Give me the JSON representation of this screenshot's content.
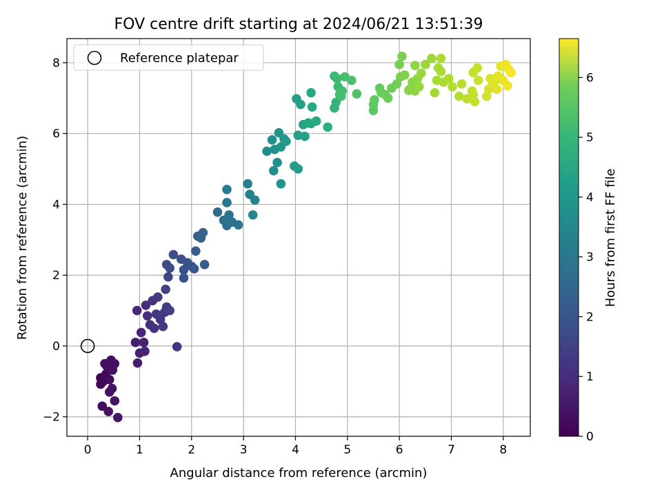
{
  "chart_data": {
    "type": "scatter",
    "title": "FOV centre drift starting at 2024/06/21 13:51:39",
    "xlabel": "Angular distance from reference (arcmin)",
    "ylabel": "Rotation from reference (arcmin)",
    "xlim": [
      -0.4,
      8.52
    ],
    "ylim": [
      -2.55,
      8.68
    ],
    "xticks": [
      0,
      1,
      2,
      3,
      4,
      5,
      6,
      7,
      8
    ],
    "yticks": [
      -2,
      0,
      2,
      4,
      6,
      8
    ],
    "xtick_labels": [
      "0",
      "1",
      "2",
      "3",
      "4",
      "5",
      "6",
      "7",
      "8"
    ],
    "ytick_labels": [
      "−2",
      "0",
      "2",
      "4",
      "6",
      "8"
    ],
    "grid": true,
    "legend": {
      "placement": "top-left",
      "label": "Reference platepar"
    },
    "reference_point": {
      "x": 0,
      "y": 0
    },
    "colormap": "viridis",
    "colorbar": {
      "label": "Hours from first FF file",
      "range": [
        0,
        6.65
      ],
      "ticks": [
        0,
        1,
        2,
        3,
        4,
        5,
        6
      ],
      "tick_labels": [
        "0",
        "1",
        "2",
        "3",
        "4",
        "5",
        "6"
      ]
    },
    "points": [
      {
        "x": 0.25,
        "y": -0.9,
        "c": 0.05
      },
      {
        "x": 0.3,
        "y": -1.0,
        "c": 0.1
      },
      {
        "x": 0.35,
        "y": -0.8,
        "c": 0.15
      },
      {
        "x": 0.42,
        "y": -0.95,
        "c": 0.2
      },
      {
        "x": 0.33,
        "y": -0.5,
        "c": 0.22
      },
      {
        "x": 0.45,
        "y": -0.4,
        "c": 0.25
      },
      {
        "x": 0.52,
        "y": -0.5,
        "c": 0.28
      },
      {
        "x": 0.48,
        "y": -0.68,
        "c": 0.3
      },
      {
        "x": 0.25,
        "y": -1.08,
        "c": 0.12
      },
      {
        "x": 0.28,
        "y": -1.7,
        "c": 0.18
      },
      {
        "x": 0.42,
        "y": -1.3,
        "c": 0.32
      },
      {
        "x": 0.52,
        "y": -1.55,
        "c": 0.35
      },
      {
        "x": 0.4,
        "y": -1.85,
        "c": 0.3
      },
      {
        "x": 0.58,
        "y": -2.02,
        "c": 0.38
      },
      {
        "x": 0.47,
        "y": -1.2,
        "c": 0.33
      },
      {
        "x": 0.38,
        "y": -0.6,
        "c": 0.27
      },
      {
        "x": 0.95,
        "y": 1.0,
        "c": 0.8
      },
      {
        "x": 0.92,
        "y": 0.1,
        "c": 0.6
      },
      {
        "x": 0.96,
        "y": -0.48,
        "c": 0.55
      },
      {
        "x": 1.0,
        "y": -0.2,
        "c": 0.62
      },
      {
        "x": 1.03,
        "y": 0.38,
        "c": 0.7
      },
      {
        "x": 1.08,
        "y": 0.1,
        "c": 0.65
      },
      {
        "x": 1.1,
        "y": -0.15,
        "c": 0.68
      },
      {
        "x": 1.12,
        "y": 1.15,
        "c": 0.85
      },
      {
        "x": 1.15,
        "y": 0.85,
        "c": 0.9
      },
      {
        "x": 1.2,
        "y": 0.6,
        "c": 0.95
      },
      {
        "x": 1.25,
        "y": 1.28,
        "c": 1.0
      },
      {
        "x": 1.28,
        "y": 0.5,
        "c": 0.92
      },
      {
        "x": 1.32,
        "y": 0.9,
        "c": 1.05
      },
      {
        "x": 1.35,
        "y": 1.38,
        "c": 1.1
      },
      {
        "x": 1.4,
        "y": 0.75,
        "c": 1.08
      },
      {
        "x": 1.45,
        "y": 0.55,
        "c": 1.12
      },
      {
        "x": 1.48,
        "y": 0.95,
        "c": 1.15
      },
      {
        "x": 1.52,
        "y": 1.1,
        "c": 1.2
      },
      {
        "x": 1.58,
        "y": 1.0,
        "c": 1.25
      },
      {
        "x": 1.5,
        "y": 1.6,
        "c": 1.3
      },
      {
        "x": 1.55,
        "y": 1.95,
        "c": 1.4
      },
      {
        "x": 1.52,
        "y": 2.3,
        "c": 1.45
      },
      {
        "x": 1.58,
        "y": 2.2,
        "c": 1.5
      },
      {
        "x": 1.72,
        "y": -0.02,
        "c": 1.0
      },
      {
        "x": 1.65,
        "y": 2.58,
        "c": 1.55
      },
      {
        "x": 1.8,
        "y": 2.45,
        "c": 1.6
      },
      {
        "x": 1.85,
        "y": 2.15,
        "c": 1.65
      },
      {
        "x": 1.92,
        "y": 2.35,
        "c": 1.7
      },
      {
        "x": 2.0,
        "y": 2.25,
        "c": 1.75
      },
      {
        "x": 1.85,
        "y": 1.92,
        "c": 1.7
      },
      {
        "x": 2.05,
        "y": 2.18,
        "c": 1.8
      },
      {
        "x": 2.08,
        "y": 2.68,
        "c": 1.9
      },
      {
        "x": 2.12,
        "y": 3.1,
        "c": 2.0
      },
      {
        "x": 2.18,
        "y": 3.05,
        "c": 2.05
      },
      {
        "x": 2.22,
        "y": 3.2,
        "c": 2.1
      },
      {
        "x": 2.25,
        "y": 2.3,
        "c": 1.95
      },
      {
        "x": 2.5,
        "y": 3.78,
        "c": 2.3
      },
      {
        "x": 2.62,
        "y": 3.55,
        "c": 2.4
      },
      {
        "x": 2.68,
        "y": 3.4,
        "c": 2.45
      },
      {
        "x": 2.72,
        "y": 3.7,
        "c": 2.5
      },
      {
        "x": 2.78,
        "y": 3.5,
        "c": 2.55
      },
      {
        "x": 2.9,
        "y": 3.42,
        "c": 2.6
      },
      {
        "x": 2.68,
        "y": 4.05,
        "c": 2.65
      },
      {
        "x": 2.68,
        "y": 4.42,
        "c": 2.7
      },
      {
        "x": 3.08,
        "y": 4.58,
        "c": 2.85
      },
      {
        "x": 3.12,
        "y": 4.28,
        "c": 2.9
      },
      {
        "x": 3.22,
        "y": 4.12,
        "c": 2.95
      },
      {
        "x": 3.18,
        "y": 3.7,
        "c": 2.92
      },
      {
        "x": 3.45,
        "y": 5.5,
        "c": 3.2
      },
      {
        "x": 3.55,
        "y": 5.82,
        "c": 3.3
      },
      {
        "x": 3.6,
        "y": 5.55,
        "c": 3.35
      },
      {
        "x": 3.58,
        "y": 4.95,
        "c": 3.25
      },
      {
        "x": 3.65,
        "y": 5.18,
        "c": 3.3
      },
      {
        "x": 3.68,
        "y": 6.02,
        "c": 3.4
      },
      {
        "x": 3.72,
        "y": 5.62,
        "c": 3.45
      },
      {
        "x": 3.78,
        "y": 5.85,
        "c": 3.5
      },
      {
        "x": 3.82,
        "y": 5.78,
        "c": 3.55
      },
      {
        "x": 3.72,
        "y": 4.58,
        "c": 3.4
      },
      {
        "x": 3.98,
        "y": 5.08,
        "c": 3.6
      },
      {
        "x": 4.05,
        "y": 5.0,
        "c": 3.65
      },
      {
        "x": 4.02,
        "y": 6.98,
        "c": 3.75
      },
      {
        "x": 4.05,
        "y": 5.95,
        "c": 3.7
      },
      {
        "x": 4.1,
        "y": 6.82,
        "c": 3.8
      },
      {
        "x": 4.15,
        "y": 6.25,
        "c": 3.85
      },
      {
        "x": 4.18,
        "y": 5.92,
        "c": 3.8
      },
      {
        "x": 4.25,
        "y": 6.3,
        "c": 3.9
      },
      {
        "x": 4.3,
        "y": 6.28,
        "c": 3.95
      },
      {
        "x": 4.3,
        "y": 7.15,
        "c": 4.0
      },
      {
        "x": 4.32,
        "y": 6.75,
        "c": 3.98
      },
      {
        "x": 4.4,
        "y": 6.35,
        "c": 4.05
      },
      {
        "x": 4.62,
        "y": 6.18,
        "c": 4.2
      },
      {
        "x": 4.75,
        "y": 6.72,
        "c": 4.3
      },
      {
        "x": 4.78,
        "y": 6.88,
        "c": 4.35
      },
      {
        "x": 4.75,
        "y": 7.62,
        "c": 4.45
      },
      {
        "x": 4.8,
        "y": 7.55,
        "c": 4.5
      },
      {
        "x": 4.85,
        "y": 7.1,
        "c": 4.55
      },
      {
        "x": 4.82,
        "y": 7.32,
        "c": 4.5
      },
      {
        "x": 4.9,
        "y": 7.2,
        "c": 4.6
      },
      {
        "x": 4.95,
        "y": 7.6,
        "c": 4.65
      },
      {
        "x": 4.88,
        "y": 7.05,
        "c": 4.6
      },
      {
        "x": 5.08,
        "y": 7.5,
        "c": 4.7
      },
      {
        "x": 5.18,
        "y": 7.12,
        "c": 4.75
      },
      {
        "x": 5.5,
        "y": 6.65,
        "c": 4.95
      },
      {
        "x": 5.52,
        "y": 6.95,
        "c": 5.0
      },
      {
        "x": 5.5,
        "y": 6.82,
        "c": 4.98
      },
      {
        "x": 5.62,
        "y": 7.28,
        "c": 5.05
      },
      {
        "x": 5.65,
        "y": 7.15,
        "c": 5.08
      },
      {
        "x": 5.72,
        "y": 7.1,
        "c": 5.1
      },
      {
        "x": 5.78,
        "y": 7.0,
        "c": 5.12
      },
      {
        "x": 5.85,
        "y": 7.28,
        "c": 5.15
      },
      {
        "x": 5.95,
        "y": 7.4,
        "c": 5.2
      },
      {
        "x": 6.0,
        "y": 7.95,
        "c": 5.25
      },
      {
        "x": 6.02,
        "y": 7.6,
        "c": 5.3
      },
      {
        "x": 6.05,
        "y": 8.18,
        "c": 5.3
      },
      {
        "x": 6.1,
        "y": 7.65,
        "c": 5.35
      },
      {
        "x": 6.18,
        "y": 7.22,
        "c": 5.4
      },
      {
        "x": 6.2,
        "y": 7.25,
        "c": 5.42
      },
      {
        "x": 6.25,
        "y": 7.45,
        "c": 5.45
      },
      {
        "x": 6.3,
        "y": 7.2,
        "c": 5.48
      },
      {
        "x": 6.3,
        "y": 7.92,
        "c": 5.5
      },
      {
        "x": 6.35,
        "y": 7.55,
        "c": 5.52
      },
      {
        "x": 6.38,
        "y": 7.32,
        "c": 5.55
      },
      {
        "x": 6.42,
        "y": 7.7,
        "c": 5.58
      },
      {
        "x": 6.5,
        "y": 7.95,
        "c": 5.6
      },
      {
        "x": 6.62,
        "y": 8.12,
        "c": 5.65
      },
      {
        "x": 6.68,
        "y": 7.15,
        "c": 5.7
      },
      {
        "x": 6.72,
        "y": 7.5,
        "c": 5.72
      },
      {
        "x": 6.75,
        "y": 7.85,
        "c": 5.75
      },
      {
        "x": 6.8,
        "y": 7.75,
        "c": 5.78
      },
      {
        "x": 6.8,
        "y": 8.12,
        "c": 5.8
      },
      {
        "x": 6.85,
        "y": 7.45,
        "c": 5.82
      },
      {
        "x": 6.95,
        "y": 7.55,
        "c": 5.85
      },
      {
        "x": 7.02,
        "y": 7.32,
        "c": 5.88
      },
      {
        "x": 7.15,
        "y": 7.05,
        "c": 5.9
      },
      {
        "x": 7.2,
        "y": 7.4,
        "c": 5.95
      },
      {
        "x": 7.3,
        "y": 6.98,
        "c": 6.0
      },
      {
        "x": 7.4,
        "y": 7.2,
        "c": 6.02
      },
      {
        "x": 7.42,
        "y": 7.72,
        "c": 6.05
      },
      {
        "x": 7.45,
        "y": 6.9,
        "c": 6.05
      },
      {
        "x": 7.5,
        "y": 7.85,
        "c": 6.1
      },
      {
        "x": 7.52,
        "y": 7.5,
        "c": 6.12
      },
      {
        "x": 7.42,
        "y": 7.1,
        "c": 6.08
      },
      {
        "x": 7.68,
        "y": 7.05,
        "c": 6.2
      },
      {
        "x": 7.72,
        "y": 7.25,
        "c": 6.22
      },
      {
        "x": 7.75,
        "y": 7.55,
        "c": 6.25
      },
      {
        "x": 7.8,
        "y": 7.4,
        "c": 6.3
      },
      {
        "x": 7.85,
        "y": 7.5,
        "c": 6.32
      },
      {
        "x": 7.88,
        "y": 7.25,
        "c": 6.35
      },
      {
        "x": 7.9,
        "y": 7.62,
        "c": 6.38
      },
      {
        "x": 7.95,
        "y": 7.9,
        "c": 6.4
      },
      {
        "x": 8.0,
        "y": 7.5,
        "c": 6.45
      },
      {
        "x": 8.05,
        "y": 7.95,
        "c": 6.5
      },
      {
        "x": 8.08,
        "y": 7.35,
        "c": 6.52
      },
      {
        "x": 8.1,
        "y": 7.82,
        "c": 6.55
      },
      {
        "x": 8.15,
        "y": 7.72,
        "c": 6.6
      }
    ]
  }
}
